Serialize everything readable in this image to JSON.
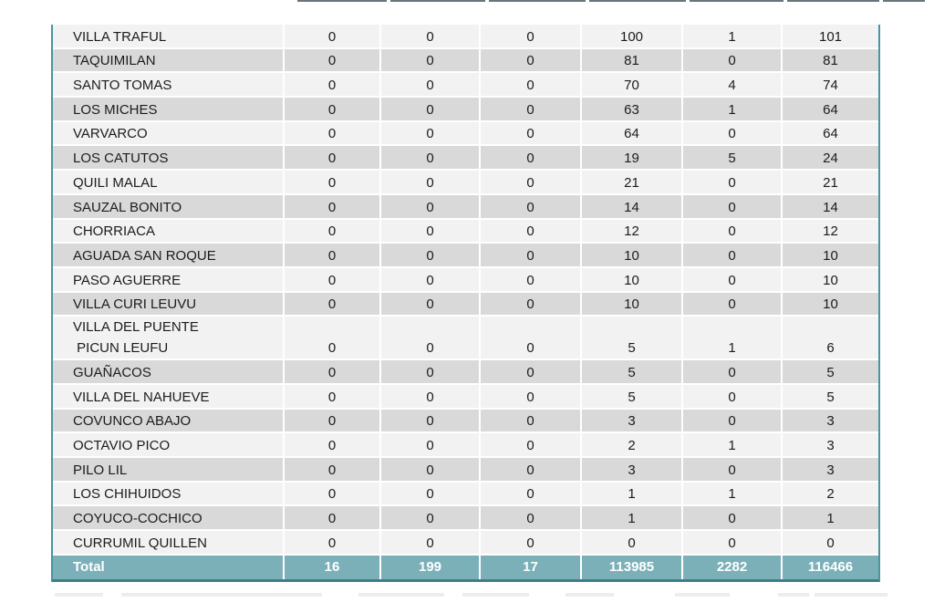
{
  "chart_data": {
    "type": "table",
    "rows": [
      {
        "name": "VILLA TRAFUL",
        "values": [
          0,
          0,
          0,
          100,
          1,
          101
        ]
      },
      {
        "name": "TAQUIMILAN",
        "values": [
          0,
          0,
          0,
          81,
          0,
          81
        ]
      },
      {
        "name": "SANTO TOMAS",
        "values": [
          0,
          0,
          0,
          70,
          4,
          74
        ]
      },
      {
        "name": "LOS MICHES",
        "values": [
          0,
          0,
          0,
          63,
          1,
          64
        ]
      },
      {
        "name": "VARVARCO",
        "values": [
          0,
          0,
          0,
          64,
          0,
          64
        ]
      },
      {
        "name": "LOS CATUTOS",
        "values": [
          0,
          0,
          0,
          19,
          5,
          24
        ]
      },
      {
        "name": "QUILI MALAL",
        "values": [
          0,
          0,
          0,
          21,
          0,
          21
        ]
      },
      {
        "name": "SAUZAL BONITO",
        "values": [
          0,
          0,
          0,
          14,
          0,
          14
        ]
      },
      {
        "name": "CHORRIACA",
        "values": [
          0,
          0,
          0,
          12,
          0,
          12
        ]
      },
      {
        "name": "AGUADA SAN ROQUE",
        "values": [
          0,
          0,
          0,
          10,
          0,
          10
        ]
      },
      {
        "name": "PASO AGUERRE",
        "values": [
          0,
          0,
          0,
          10,
          0,
          10
        ]
      },
      {
        "name": "VILLA CURI LEUVU",
        "values": [
          0,
          0,
          0,
          10,
          0,
          10
        ]
      },
      {
        "name": "VILLA DEL PUENTE\n PICUN LEUFU",
        "values": [
          0,
          0,
          0,
          5,
          1,
          6
        ]
      },
      {
        "name": "GUAÑACOS",
        "values": [
          0,
          0,
          0,
          5,
          0,
          5
        ]
      },
      {
        "name": "VILLA DEL NAHUEVE",
        "values": [
          0,
          0,
          0,
          5,
          0,
          5
        ]
      },
      {
        "name": "COVUNCO ABAJO",
        "values": [
          0,
          0,
          0,
          3,
          0,
          3
        ]
      },
      {
        "name": "OCTAVIO PICO",
        "values": [
          0,
          0,
          0,
          2,
          1,
          3
        ]
      },
      {
        "name": "PILO LIL",
        "values": [
          0,
          0,
          0,
          3,
          0,
          3
        ]
      },
      {
        "name": "LOS CHIHUIDOS",
        "values": [
          0,
          0,
          0,
          1,
          1,
          2
        ]
      },
      {
        "name": "COYUCO-COCHICO",
        "values": [
          0,
          0,
          0,
          1,
          0,
          1
        ]
      },
      {
        "name": "CURRUMIL QUILLEN",
        "values": [
          0,
          0,
          0,
          0,
          0,
          0
        ]
      }
    ],
    "total": {
      "label": "Total",
      "values": [
        16,
        199,
        17,
        113985,
        2282,
        116466
      ]
    }
  },
  "colors": {
    "row_light": "#F2F2F2",
    "row_dark": "#D9D9D9",
    "total_bg": "#7BB0B9",
    "total_border": "#3E7E89",
    "table_border": "#4796A0"
  }
}
